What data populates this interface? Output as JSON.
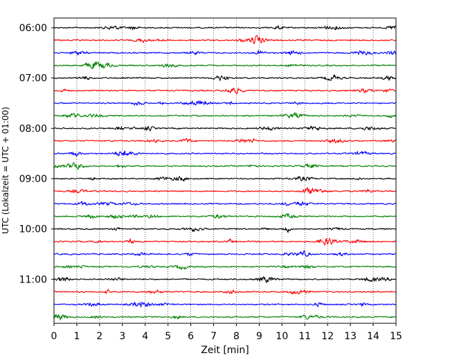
{
  "chart_data": {
    "type": "line",
    "title": "",
    "xlabel": "Zeit  [min]",
    "ylabel": "UTC (Lokalzeit = UTC + 01:00)",
    "xlim": [
      0,
      15
    ],
    "x_ticks": [
      "0",
      "1",
      "2",
      "3",
      "4",
      "5",
      "6",
      "7",
      "8",
      "9",
      "10",
      "11",
      "12",
      "13",
      "14",
      "15"
    ],
    "y_ticks": [
      "06:00",
      "07:00",
      "08:00",
      "09:00",
      "10:00",
      "11:00"
    ],
    "grid": "vertical dotted lines at each minute",
    "legend": "none",
    "trace_colors": [
      "#000000",
      "#ff0000",
      "#0000ff",
      "#008000"
    ],
    "traces": [
      {
        "start": "06:00"
      },
      {
        "start": "06:15"
      },
      {
        "start": "06:30"
      },
      {
        "start": "06:45"
      },
      {
        "start": "07:00"
      },
      {
        "start": "07:15"
      },
      {
        "start": "07:30"
      },
      {
        "start": "07:45"
      },
      {
        "start": "08:00"
      },
      {
        "start": "08:15"
      },
      {
        "start": "08:30"
      },
      {
        "start": "08:45"
      },
      {
        "start": "09:00"
      },
      {
        "start": "09:15"
      },
      {
        "start": "09:30"
      },
      {
        "start": "09:45"
      },
      {
        "start": "10:00"
      },
      {
        "start": "10:15"
      },
      {
        "start": "10:30"
      },
      {
        "start": "10:45"
      },
      {
        "start": "11:00"
      },
      {
        "start": "11:15"
      },
      {
        "start": "11:30"
      },
      {
        "start": "11:45"
      }
    ]
  }
}
